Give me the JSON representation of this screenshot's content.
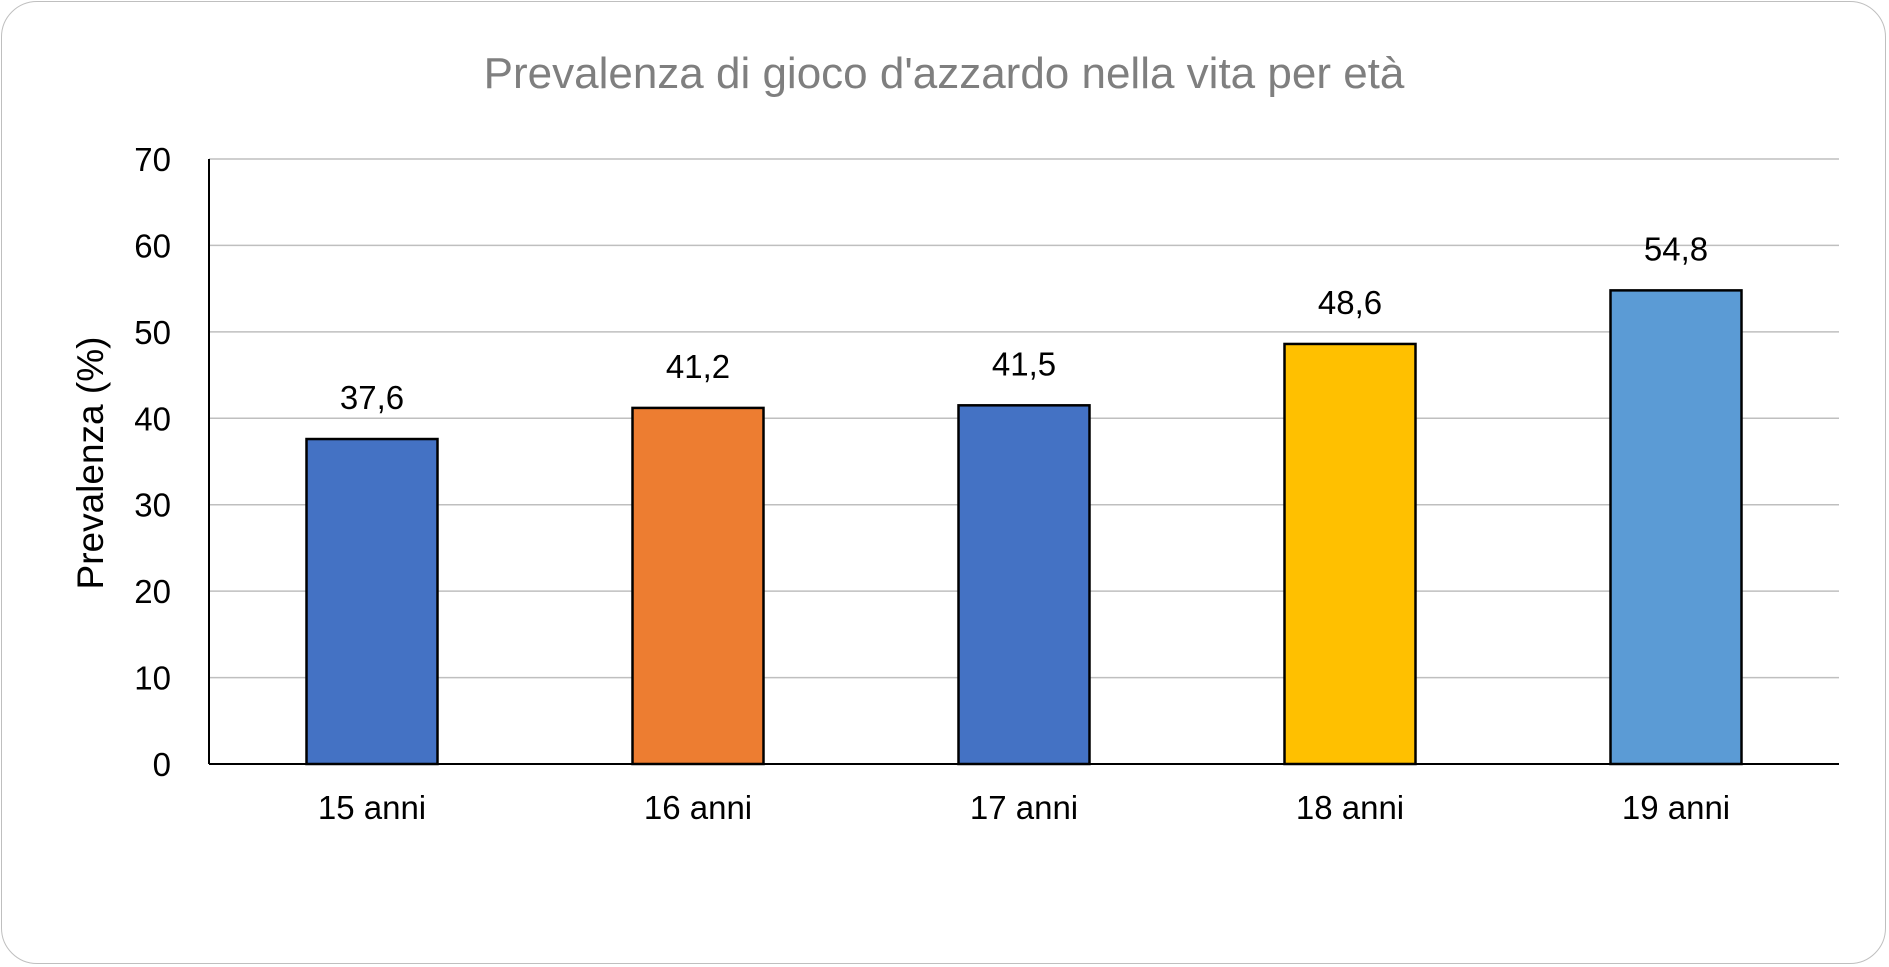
{
  "chart_data": {
    "type": "bar",
    "title": "Prevalenza di gioco d'azzardo nella vita per età",
    "xlabel": "",
    "ylabel": "Prevalenza (%)",
    "categories": [
      "15 anni",
      "16 anni",
      "17 anni",
      "18 anni",
      "19 anni"
    ],
    "values": [
      37.6,
      41.2,
      41.5,
      48.6,
      54.8
    ],
    "value_labels": [
      "37,6",
      "41,2",
      "41,5",
      "48,6",
      "54,8"
    ],
    "bar_colors": [
      "#4472c4",
      "#ed7d31",
      "#4472c4",
      "#ffc000",
      "#5b9bd5"
    ],
    "ylim": [
      0,
      70
    ],
    "yticks": [
      0,
      10,
      20,
      30,
      40,
      50,
      60,
      70
    ],
    "grid": true,
    "legend": "none"
  },
  "colors": {
    "gridline": "#bfbfbf",
    "axis": "#000000",
    "bar_outline": "#000000",
    "title": "#7f7f7f",
    "frame_border": "#bfbfbf"
  }
}
